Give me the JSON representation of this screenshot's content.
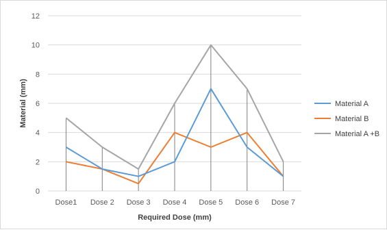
{
  "chart_data": {
    "type": "line",
    "categories": [
      "Dose1",
      "Dose 2",
      "Dose 3",
      "Dose 4",
      "Dose 5",
      "Dose 6",
      "Dose 7"
    ],
    "xlabel": "Required Dose (mm)",
    "ylabel": "Material (mm)",
    "ylim": [
      0,
      12
    ],
    "yticks": [
      "0",
      "2",
      "4",
      "6",
      "8",
      "10",
      "12"
    ],
    "grid": true,
    "drop_lines": true,
    "legend_position": "right",
    "series": [
      {
        "name": "Material A",
        "color": "#5b9bd5",
        "values": [
          3,
          1.5,
          1,
          2,
          7,
          3,
          1
        ]
      },
      {
        "name": "Material B",
        "color": "#ed7d31",
        "values": [
          2,
          1.5,
          0.5,
          4,
          3,
          4,
          1
        ]
      },
      {
        "name": "Material A +B",
        "color": "#a5a5a5",
        "values": [
          5,
          3,
          1.5,
          6,
          10,
          7,
          2
        ]
      }
    ]
  }
}
